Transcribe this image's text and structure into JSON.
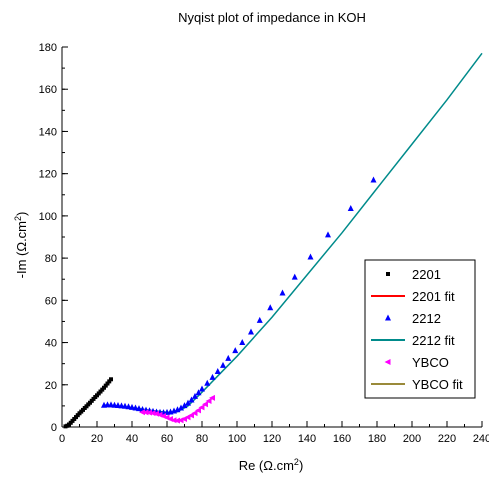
{
  "chart_data": {
    "type": "scatter",
    "title": "Nyqist plot of impedance in KOH",
    "xlabel": "Re (Ω.cm²)",
    "ylabel": "-Im (Ω.cm²)",
    "xlim": [
      0,
      240
    ],
    "ylim": [
      0,
      180
    ],
    "xticks": [
      0,
      20,
      40,
      60,
      80,
      100,
      120,
      140,
      160,
      180,
      200,
      220,
      240
    ],
    "yticks": [
      0,
      20,
      40,
      60,
      80,
      100,
      120,
      140,
      160,
      180
    ],
    "grid": false,
    "legend_position": "bottom-right",
    "series": [
      {
        "name": "2201",
        "kind": "points",
        "marker": "square",
        "color": "#000000",
        "x": [
          2,
          3,
          4,
          5,
          6,
          7,
          8,
          9,
          10,
          11,
          12,
          13,
          14,
          15,
          16,
          17,
          18,
          19,
          20,
          21,
          22,
          23,
          24,
          25,
          26,
          27,
          28
        ],
        "y": [
          0.3,
          0.6,
          1.2,
          2.0,
          2.9,
          3.8,
          4.7,
          5.6,
          6.5,
          7.3,
          8.1,
          9.0,
          9.8,
          10.7,
          11.5,
          12.4,
          13.3,
          14.2,
          15.0,
          15.9,
          16.8,
          17.7,
          18.6,
          19.6,
          20.6,
          21.6,
          22.6
        ]
      },
      {
        "name": "2201 fit",
        "kind": "line",
        "color": "#ff0000",
        "x": [
          1.5,
          3,
          5,
          8,
          12,
          16,
          20,
          24,
          28
        ],
        "y": [
          0,
          0.6,
          2.0,
          4.7,
          8.1,
          11.5,
          15.0,
          18.6,
          22.6
        ]
      },
      {
        "name": "2212",
        "kind": "points",
        "marker": "triangle",
        "color": "#0000ff",
        "x": [
          24,
          26,
          28,
          30,
          32,
          34,
          36,
          38,
          40,
          42,
          44,
          46,
          48,
          50,
          52,
          54,
          56,
          58,
          60,
          62,
          64,
          66,
          68,
          70,
          72,
          74,
          76,
          78,
          80,
          83,
          86,
          89,
          92,
          95,
          99,
          103,
          108,
          113,
          119,
          126,
          133,
          142,
          152,
          165,
          178
        ],
        "y": [
          10.3,
          10.5,
          10.5,
          10.3,
          10.2,
          10.0,
          9.8,
          9.6,
          9.3,
          9.0,
          8.7,
          8.3,
          8.0,
          7.7,
          7.4,
          7.1,
          6.9,
          6.8,
          6.9,
          7.1,
          7.6,
          8.2,
          9.0,
          10.1,
          11.3,
          12.8,
          14.5,
          16.2,
          18.0,
          20.7,
          23.5,
          26.3,
          29.2,
          32.5,
          36.2,
          40.0,
          45.0,
          50.5,
          56.5,
          63.5,
          71.0,
          80.5,
          91.0,
          103.5,
          117.0
        ]
      },
      {
        "name": "2212 fit",
        "kind": "line",
        "color": "#008b8b",
        "x": [
          24,
          30,
          40,
          50,
          60,
          66,
          72,
          80,
          90,
          100,
          120,
          140,
          160,
          180,
          200,
          220,
          240
        ],
        "y": [
          10.4,
          10.2,
          9.2,
          7.9,
          6.9,
          7.3,
          10.0,
          16.5,
          25.0,
          33.5,
          52.0,
          72.0,
          92.0,
          113.0,
          134.0,
          155.0,
          177.0
        ]
      },
      {
        "name": "YBCO",
        "kind": "points",
        "marker": "left-triangle",
        "color": "#ff00ff",
        "x": [
          46,
          48,
          50,
          52,
          54,
          56,
          58,
          60,
          62,
          64,
          66,
          68,
          70,
          72,
          74,
          76,
          78,
          80,
          82,
          84,
          86
        ],
        "y": [
          7.0,
          6.9,
          6.8,
          6.6,
          6.3,
          5.8,
          5.2,
          4.5,
          3.8,
          3.2,
          3.0,
          3.2,
          3.8,
          4.6,
          5.5,
          6.6,
          7.9,
          9.3,
          10.8,
          12.3,
          13.8
        ]
      },
      {
        "name": "YBCO fit",
        "kind": "line",
        "color": "#9a8a3a",
        "x": [
          46,
          50,
          54,
          58,
          62,
          66,
          70,
          74,
          78,
          82,
          86
        ],
        "y": [
          7.0,
          6.8,
          6.3,
          5.2,
          3.8,
          3.0,
          3.8,
          5.5,
          7.9,
          10.8,
          13.8
        ]
      }
    ]
  }
}
